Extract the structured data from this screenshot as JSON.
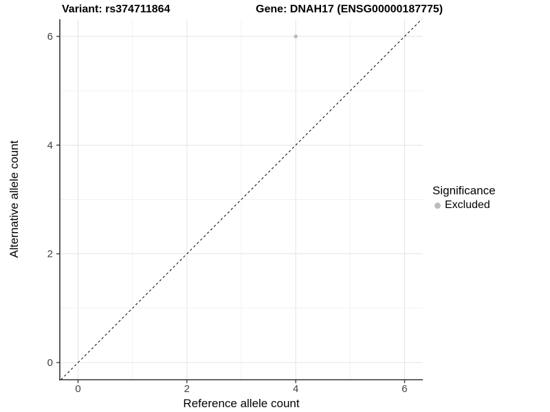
{
  "titles": {
    "variant": "Variant: rs374711864",
    "gene": "Gene: DNAH17 (ENSG00000187775)"
  },
  "legend": {
    "title": "Significance",
    "items": [
      {
        "label": "Excluded",
        "color": "#bcbcbc"
      }
    ]
  },
  "chart_data": {
    "type": "scatter",
    "title": "Variant: rs374711864 — Gene: DNAH17 (ENSG00000187775)",
    "xlabel": "Reference allele count",
    "ylabel": "Alternative allele count",
    "x_ticks": [
      0,
      2,
      4,
      6
    ],
    "y_ticks": [
      0,
      2,
      4,
      6
    ],
    "x_minor_ticks": [
      1,
      3,
      5
    ],
    "y_minor_ticks": [
      1,
      3,
      5
    ],
    "xlim": [
      -0.335,
      6.335
    ],
    "ylim": [
      -0.316,
      6.316
    ],
    "grid": true,
    "legend_position": "right",
    "series": [
      {
        "name": "Excluded",
        "color": "#bcbcbc",
        "points": [
          {
            "x": 4,
            "y": 6
          }
        ]
      }
    ],
    "reference_line": {
      "type": "identity y=x",
      "style": "dashed",
      "color": "#000000",
      "from": [
        -0.316,
        -0.316
      ],
      "to": [
        6.316,
        6.316
      ]
    },
    "colors": {
      "background": "#ffffff",
      "grid_major": "#e3e3e3",
      "grid_minor": "#f1f1f1",
      "axis_line": "#333333",
      "tick_mark": "#333333",
      "tick_label": "#404040"
    }
  }
}
